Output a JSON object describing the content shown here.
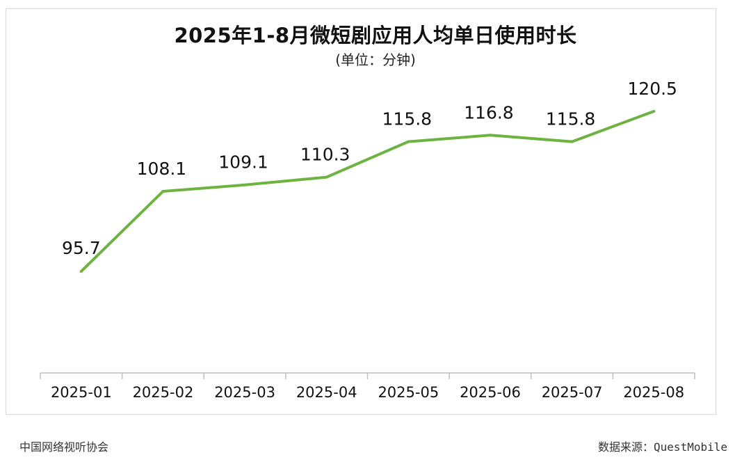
{
  "chart_data": {
    "type": "line",
    "title": "2025年1-8月微短剧应用人均单日使用时长",
    "subtitle": "(单位：分钟)",
    "categories": [
      "2025-01",
      "2025-02",
      "2025-03",
      "2025-04",
      "2025-05",
      "2025-06",
      "2025-07",
      "2025-08"
    ],
    "series": [
      {
        "values": [
          95.7,
          108.1,
          109.1,
          110.3,
          115.8,
          116.8,
          115.8,
          120.5
        ]
      }
    ],
    "data_labels": [
      "95.7",
      "108.1",
      "109.1",
      "110.3",
      "115.8",
      "116.8",
      "115.8",
      "120.5"
    ],
    "line_color": "#6db33f",
    "grid": false,
    "legend": "none"
  },
  "footer": {
    "left": "中国网络视听协会",
    "right": "数据来源：QuestMobile"
  }
}
